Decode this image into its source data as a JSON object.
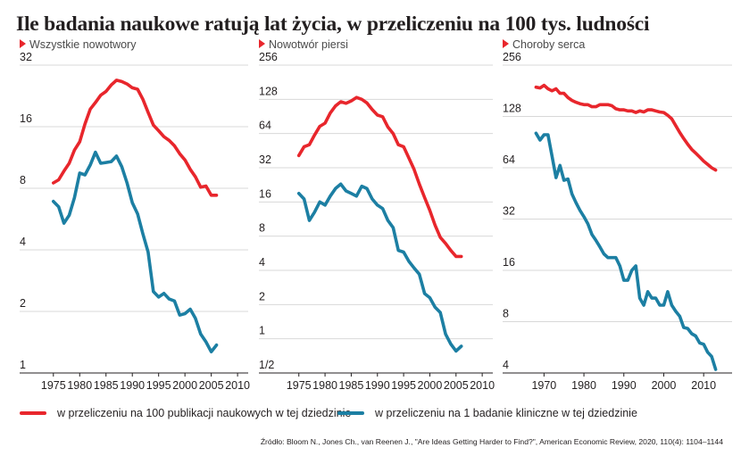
{
  "title": "Ile badania naukowe ratują lat życia, w przeliczeniu na 100 tys. ludności",
  "colors": {
    "red": "#e8262c",
    "blue": "#1c7fa3",
    "marker": "#e8262c"
  },
  "legend": [
    {
      "label": "w przeliczeniu na 100 publikacji naukowych w tej dziedzinie",
      "color": "#e8262c"
    },
    {
      "label": "w przeliczeniu na 1 badanie kliniczne w tej dziedzinie",
      "color": "#1c7fa3"
    }
  ],
  "source": "Źródło: Bloom N., Jones Ch., van Reenen J., \"Are Ideas Getting Harder to Find?\", American Economic Review, 2020, 110(4): 1104–1144",
  "chart_data": [
    {
      "type": "line",
      "subtitle": "Wszystkie nowotwory",
      "yscale": "log2",
      "ylim": [
        1,
        32
      ],
      "yticks": [
        "1",
        "2",
        "4",
        "8",
        "16",
        "32"
      ],
      "xlim": [
        1973,
        2011
      ],
      "xticks": [
        "1975",
        "1980",
        "1985",
        "1990",
        "1995",
        "2000",
        "2005",
        "2010"
      ],
      "series": [
        {
          "color": "#e8262c",
          "x": [
            1975,
            1976,
            1977,
            1978,
            1979,
            1980,
            1981,
            1982,
            1983,
            1984,
            1985,
            1986,
            1987,
            1988,
            1989,
            1990,
            1991,
            1992,
            1993,
            1994,
            1995,
            1996,
            1997,
            1998,
            1999,
            2000,
            2001,
            2002,
            2003,
            2004,
            2005,
            2006
          ],
          "y": [
            8.5,
            8.8,
            9.7,
            10.6,
            12.3,
            13.5,
            16.5,
            19.5,
            21,
            22.8,
            23.8,
            25.6,
            27,
            26.6,
            25.9,
            24.8,
            24.4,
            21.8,
            18.8,
            16.3,
            15.3,
            14.3,
            13.7,
            12.9,
            11.8,
            11,
            9.9,
            9.1,
            8.1,
            8.2,
            7.4,
            7.4
          ]
        },
        {
          "color": "#1c7fa3",
          "x": [
            1975,
            1976,
            1977,
            1978,
            1979,
            1980,
            1981,
            1982,
            1983,
            1984,
            1985,
            1986,
            1987,
            1988,
            1989,
            1990,
            1991,
            1992,
            1993,
            1994,
            1995,
            1996,
            1997,
            1998,
            1999,
            2000,
            2001,
            2002,
            2003,
            2004,
            2005,
            2006
          ],
          "y": [
            6.9,
            6.5,
            5.4,
            5.9,
            7.2,
            9.5,
            9.3,
            10.4,
            12,
            10.6,
            10.7,
            10.8,
            11.5,
            10.2,
            8.5,
            6.8,
            6,
            4.8,
            3.9,
            2.5,
            2.35,
            2.45,
            2.3,
            2.25,
            1.92,
            1.95,
            2.05,
            1.85,
            1.55,
            1.42,
            1.27,
            1.37
          ]
        }
      ]
    },
    {
      "type": "line",
      "subtitle": "Nowotwór piersi",
      "yscale": "log2",
      "ylim": [
        0.5,
        256
      ],
      "yticks": [
        "1/2",
        "1",
        "2",
        "4",
        "8",
        "16",
        "32",
        "64",
        "128",
        "256"
      ],
      "xlim": [
        1973,
        2011
      ],
      "xticks": [
        "1975",
        "1980",
        "1985",
        "1990",
        "1995",
        "2000",
        "2005",
        "2010"
      ],
      "series": [
        {
          "color": "#e8262c",
          "x": [
            1975,
            1976,
            1977,
            1978,
            1979,
            1980,
            1981,
            1982,
            1983,
            1984,
            1985,
            1986,
            1987,
            1988,
            1989,
            1990,
            1991,
            1992,
            1993,
            1994,
            1995,
            1996,
            1997,
            1998,
            1999,
            2000,
            2001,
            2002,
            2003,
            2004,
            2005,
            2006
          ],
          "y": [
            41,
            49,
            51,
            62,
            74,
            79,
            97,
            112,
            122,
            118,
            124,
            133,
            128,
            119,
            104,
            93,
            90,
            73,
            64,
            51,
            49,
            39,
            31,
            23,
            17.5,
            13.5,
            10,
            7.8,
            6.9,
            6,
            5.3,
            5.3
          ]
        },
        {
          "color": "#1c7fa3",
          "x": [
            1975,
            1976,
            1977,
            1978,
            1979,
            1980,
            1981,
            1982,
            1983,
            1984,
            1985,
            1986,
            1987,
            1988,
            1989,
            1990,
            1991,
            1992,
            1993,
            1994,
            1995,
            1996,
            1997,
            1998,
            1999,
            2000,
            2001,
            2002,
            2003,
            2004,
            2005,
            2006
          ],
          "y": [
            19,
            17,
            11,
            13,
            16,
            15,
            18,
            21,
            23,
            20,
            19,
            18,
            22,
            21,
            17,
            15,
            14,
            11,
            9.5,
            6,
            5.8,
            4.8,
            4.2,
            3.7,
            2.5,
            2.3,
            1.9,
            1.7,
            1.1,
            0.9,
            0.78,
            0.86
          ]
        }
      ]
    },
    {
      "type": "line",
      "subtitle": "Choroby serca",
      "yscale": "log2",
      "ylim": [
        4,
        256
      ],
      "yticks": [
        "4",
        "8",
        "16",
        "32",
        "64",
        "128",
        "256"
      ],
      "xlim": [
        1965,
        2016
      ],
      "xticks": [
        "1970",
        "1980",
        "1990",
        "2000",
        "2010"
      ],
      "series": [
        {
          "color": "#e8262c",
          "x": [
            1968,
            1969,
            1970,
            1971,
            1972,
            1973,
            1974,
            1975,
            1976,
            1977,
            1978,
            1979,
            1980,
            1981,
            1982,
            1983,
            1984,
            1985,
            1986,
            1987,
            1988,
            1989,
            1990,
            1991,
            1992,
            1993,
            1994,
            1995,
            1996,
            1997,
            1998,
            1999,
            2000,
            2001,
            2002,
            2003,
            2004,
            2005,
            2006,
            2007,
            2008,
            2009,
            2010,
            2011,
            2012,
            2013
          ],
          "y": [
            190,
            188,
            195,
            186,
            181,
            186,
            175,
            175,
            165,
            159,
            155,
            152,
            150,
            150,
            146,
            146,
            150,
            150,
            150,
            148,
            142,
            140,
            140,
            138,
            138,
            135,
            138,
            136,
            140,
            140,
            138,
            136,
            135,
            130,
            124,
            113,
            103,
            95,
            88,
            82,
            78,
            74,
            70,
            67,
            64,
            62
          ]
        },
        {
          "color": "#1c7fa3",
          "x": [
            1968,
            1969,
            1970,
            1971,
            1972,
            1973,
            1974,
            1975,
            1976,
            1977,
            1978,
            1979,
            1980,
            1981,
            1982,
            1983,
            1984,
            1985,
            1986,
            1987,
            1988,
            1989,
            1990,
            1991,
            1992,
            1993,
            1994,
            1995,
            1996,
            1997,
            1998,
            1999,
            2000,
            2001,
            2002,
            2003,
            2004,
            2005,
            2006,
            2007,
            2008,
            2009,
            2010,
            2011,
            2012,
            2013
          ],
          "y": [
            102,
            93,
            100,
            100,
            75,
            56,
            66,
            54,
            55,
            45,
            40,
            36,
            33,
            30,
            26,
            24,
            22,
            20,
            19,
            19,
            19,
            17,
            14,
            14,
            16,
            17,
            11,
            10,
            12,
            11,
            11,
            10,
            10,
            12,
            10,
            9.2,
            8.6,
            7.4,
            7.3,
            6.8,
            6.6,
            6,
            5.9,
            5.3,
            5,
            4.2
          ]
        }
      ]
    }
  ]
}
